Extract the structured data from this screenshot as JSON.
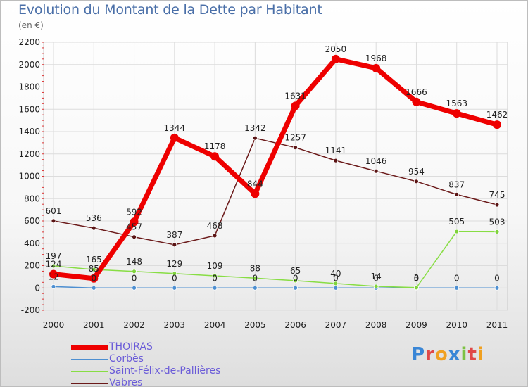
{
  "title": "Evolution du Montant de la Dette par Habitant",
  "subtitle": "(en €)",
  "logo": "Proxiti",
  "chart_data": {
    "type": "line",
    "title": "Evolution du Montant de la Dette par Habitant",
    "subtitle": "(en €)",
    "x": [
      "2000",
      "2001",
      "2002",
      "2003",
      "2004",
      "2005",
      "2006",
      "2007",
      "2008",
      "2009",
      "2010",
      "2011"
    ],
    "ylim": [
      -200,
      2200
    ],
    "yticks": [
      -200,
      0,
      200,
      400,
      600,
      800,
      1000,
      1200,
      1400,
      1600,
      1800,
      2000,
      2200
    ],
    "grid": true,
    "legend": "bottom-left",
    "series": [
      {
        "name": "THOIRAS",
        "color": "#ee0000",
        "values": [
          124,
          85,
          592,
          1344,
          1178,
          844,
          1631,
          2050,
          1968,
          1666,
          1563,
          1462
        ],
        "labels": [
          "124",
          "85",
          "592",
          "1344",
          "1178",
          "844",
          "1631",
          "2050",
          "1968",
          "1666",
          "1563",
          "1462"
        ]
      },
      {
        "name": "Corbès",
        "color": "#4d8fd1",
        "values": [
          12,
          0,
          0,
          0,
          0,
          0,
          0,
          0,
          0,
          0,
          0,
          0
        ],
        "labels": [
          "12",
          "0",
          "0",
          "0",
          "0",
          "0",
          "0",
          "0",
          "0",
          "0",
          "0",
          "0"
        ]
      },
      {
        "name": "Saint-Félix-de-Pallières",
        "color": "#88dd44",
        "values": [
          197,
          165,
          148,
          129,
          109,
          88,
          65,
          40,
          14,
          3,
          505,
          503
        ],
        "labels": [
          "197",
          "165",
          "148",
          "129",
          "109",
          "88",
          "65",
          "40",
          "14",
          "3",
          "505",
          "503"
        ]
      },
      {
        "name": "Vabres",
        "color": "#6b1a1a",
        "values": [
          601,
          536,
          457,
          387,
          468,
          1342,
          1257,
          1141,
          1046,
          954,
          837,
          745
        ],
        "labels": [
          "601",
          "536",
          "457",
          "387",
          "468",
          "1342",
          "1257",
          "1141",
          "1046",
          "954",
          "837",
          "745"
        ]
      }
    ]
  }
}
